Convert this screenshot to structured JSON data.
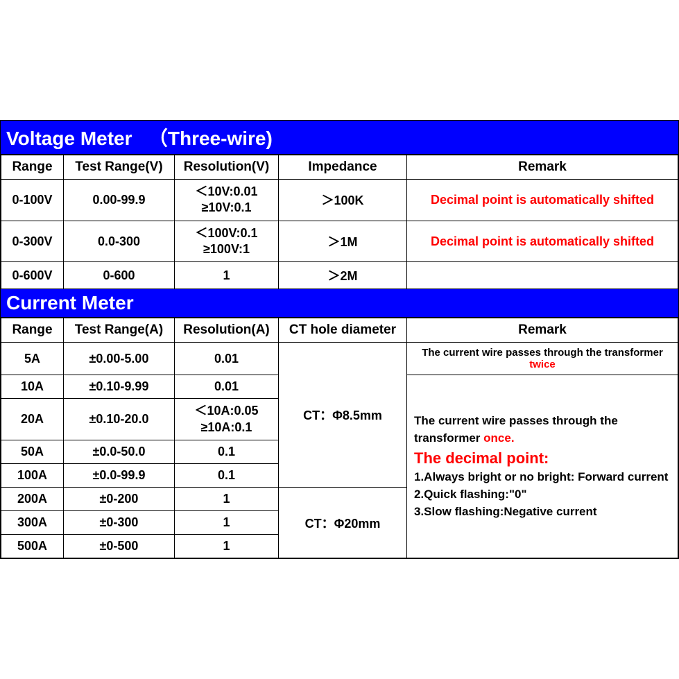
{
  "voltage": {
    "title": "Voltage Meter   （Three-wire)",
    "headers": {
      "range": "Range",
      "test": "Test Range(V)",
      "res": "Resolution(V)",
      "imp": "Impedance",
      "remark": "Remark"
    },
    "rows": [
      {
        "range": "0-100V",
        "test": "0.00-99.9",
        "res_ln1": "＜10V:0.01",
        "res_ln2": "≥10V:0.1",
        "imp": "＞100K",
        "remark": "Decimal point is automatically shifted",
        "remark_red": true
      },
      {
        "range": "0-300V",
        "test": "0.0-300",
        "res_ln1": "＜100V:0.1",
        "res_ln2": "≥100V:1",
        "imp": "＞1M",
        "remark": "Decimal point is automatically shifted",
        "remark_red": true
      },
      {
        "range": "0-600V",
        "test": "0-600",
        "res_ln1": "1",
        "res_ln2": "",
        "imp": "＞2M",
        "remark": "",
        "remark_red": false
      }
    ]
  },
  "current": {
    "title": "Current Meter",
    "headers": {
      "range": "Range",
      "test": "Test Range(A)",
      "res": "Resolution(A)",
      "ct": "CT hole diameter",
      "remark": "Remark"
    },
    "rows": {
      "r5": {
        "range": "5A",
        "test": "±0.00-5.00",
        "res": "0.01"
      },
      "r10": {
        "range": "10A",
        "test": "±0.10-9.99",
        "res": "0.01"
      },
      "r20": {
        "range": "20A",
        "test": "±0.10-20.0",
        "res_ln1": "＜10A:0.05",
        "res_ln2": "≥10A:0.1"
      },
      "r50": {
        "range": "50A",
        "test": "±0.0-50.0",
        "res": "0.1"
      },
      "r100": {
        "range": "100A",
        "test": "±0.0-99.9",
        "res": "0.1"
      },
      "r200": {
        "range": "200A",
        "test": "±0-200",
        "res": "1"
      },
      "r300": {
        "range": "300A",
        "test": "±0-300",
        "res": "1"
      },
      "r500": {
        "range": "500A",
        "test": "±0-500",
        "res": "1"
      }
    },
    "ct1": "CT：Φ8.5mm",
    "ct2": "CT：Φ20mm",
    "remark5a_pre": "The current wire passes through the transformer ",
    "remark5a_red": "twice",
    "remark_body": {
      "line1_pre": "The current wire passes through the transformer ",
      "line1_red": "once.",
      "heading": "The decimal point:",
      "n1": "1.Always bright or no bright: Forward current",
      "n2": "2.Quick flashing:\"0\"",
      "n3": "3.Slow flashing:Negative current"
    }
  },
  "colors": {
    "title_bg": "#0000ff",
    "title_fg": "#ffffff",
    "border": "#000000",
    "red": "#ff0000",
    "bg": "#ffffff"
  }
}
